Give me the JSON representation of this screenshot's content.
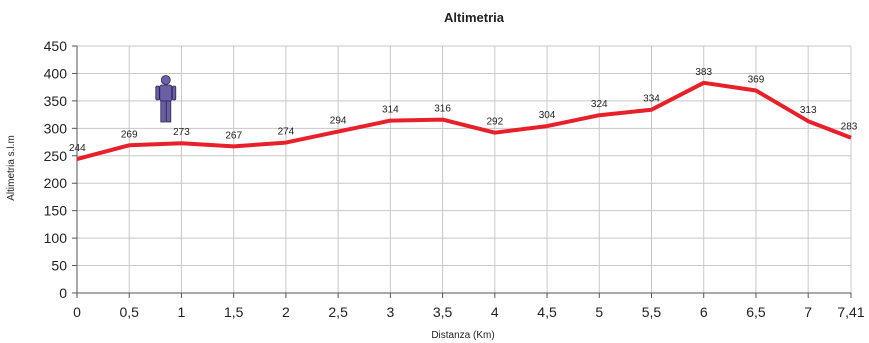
{
  "chart_data": {
    "type": "line",
    "title": "Altimetria",
    "xlabel": "Distanza (Km)",
    "ylabel": "Altimetria s.l.m",
    "x": [
      0,
      0.5,
      1,
      1.5,
      2,
      2.5,
      3,
      3.5,
      4,
      4.5,
      5,
      5.5,
      6,
      6.5,
      7,
      7.41
    ],
    "x_tick_labels": [
      "0",
      "0,5",
      "1",
      "1,5",
      "2",
      "2,5",
      "3",
      "3,5",
      "4",
      "4,5",
      "5",
      "5,5",
      "6",
      "6,5",
      "7",
      "7,41"
    ],
    "values": [
      244,
      269,
      273,
      267,
      274,
      294,
      314,
      316,
      292,
      304,
      324,
      334,
      383,
      369,
      313,
      283
    ],
    "data_labels": [
      "244",
      "269",
      "273",
      "267",
      "274",
      "294",
      "314",
      "316",
      "292",
      "304",
      "324",
      "334",
      "383",
      "369",
      "313",
      "283"
    ],
    "ylim": [
      0,
      450
    ],
    "y_ticks": [
      0,
      50,
      100,
      150,
      200,
      250,
      300,
      350,
      400,
      450
    ],
    "grid": true,
    "line_color": "#e8202a",
    "grid_color": "#c8c8c8",
    "marker": {
      "icon": "person-icon",
      "x": 0.85,
      "color": "#6b5fa8"
    }
  }
}
